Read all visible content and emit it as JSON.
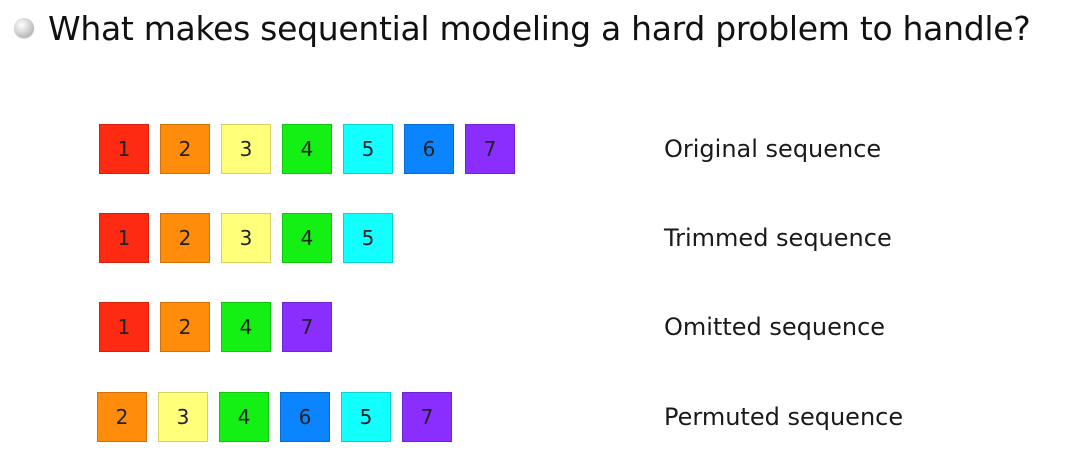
{
  "title": "What makes sequential modeling a hard problem to handle?",
  "colors": {
    "1": "#ff2a12",
    "2": "#ff8c0b",
    "3": "#ffff7a",
    "4": "#14f014",
    "5": "#12ffff",
    "6": "#0a84ff",
    "7": "#8a2eff"
  },
  "rows": [
    {
      "label": "Original sequence",
      "items": [
        "1",
        "2",
        "3",
        "4",
        "5",
        "6",
        "7"
      ]
    },
    {
      "label": "Trimmed sequence",
      "items": [
        "1",
        "2",
        "3",
        "4",
        "5"
      ]
    },
    {
      "label": "Omitted sequence",
      "items": [
        "1",
        "2",
        "4",
        "7"
      ]
    },
    {
      "label": "Permuted sequence",
      "items": [
        "2",
        "3",
        "4",
        "6",
        "5",
        "7"
      ]
    }
  ]
}
